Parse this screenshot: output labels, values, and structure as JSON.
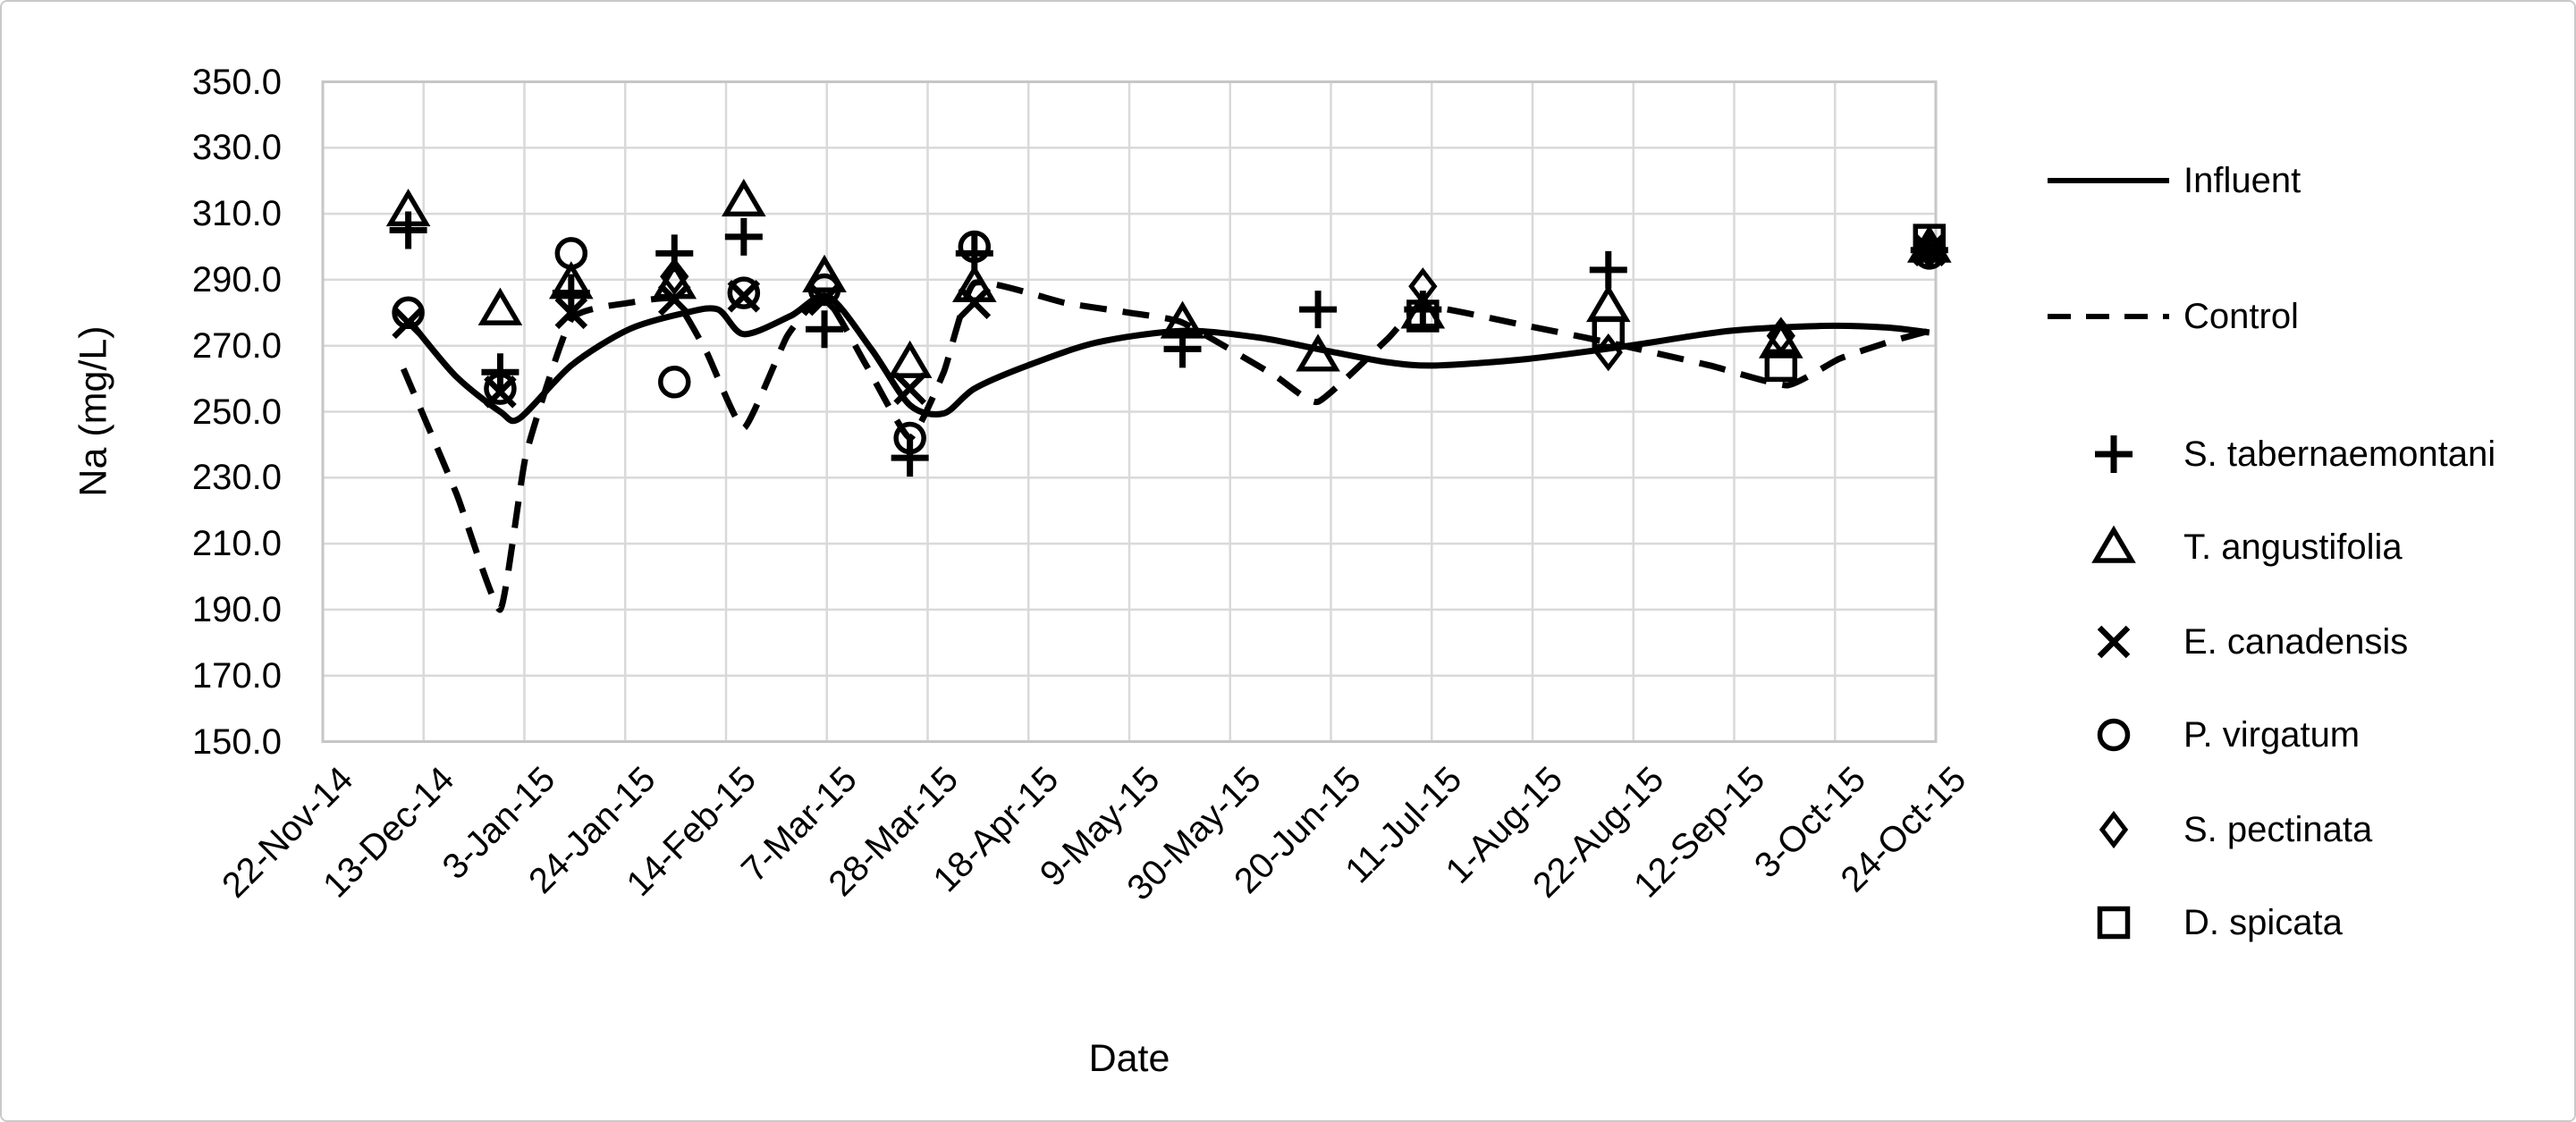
{
  "figure": {
    "background": "#ffffff",
    "border_color": "#c9c9c9",
    "grid_color": "#d9d9d9",
    "plot_border_color": "#c6c6c6",
    "ink_color": "#000000"
  },
  "chart_data": {
    "type": "line+scatter",
    "title": "",
    "xlabel": "Date",
    "ylabel": "Na (mg/L)",
    "ylim": [
      150,
      350
    ],
    "ytick_step": 20,
    "ytick_labels": [
      "350.0",
      "330.0",
      "310.0",
      "290.0",
      "270.0",
      "250.0",
      "230.0",
      "210.0",
      "190.0",
      "170.0",
      "150.0"
    ],
    "xtick_labels": [
      "22-Nov-14",
      "13-Dec-14",
      "3-Jan-15",
      "24-Jan-15",
      "14-Feb-15",
      "7-Mar-15",
      "28-Mar-15",
      "18-Apr-15",
      "9-May-15",
      "30-May-15",
      "20-Jun-15",
      "11-Jul-15",
      "1-Aug-15",
      "22-Aug-15",
      "12-Sep-15",
      "3-Oct-15",
      "24-Oct-15"
    ],
    "grid": true,
    "legend_position": "right",
    "note_x_units": "x values are fractions of the horizontal axis span (0 = 22-Nov-14 tick, 1 = 24-Oct-15 tick)",
    "series_lines": [
      {
        "name": "Influent",
        "style": "solid",
        "points": [
          [
            0.053,
            278
          ],
          [
            0.082,
            261
          ],
          [
            0.11,
            250
          ],
          [
            0.122,
            248
          ],
          [
            0.154,
            264
          ],
          [
            0.19,
            275
          ],
          [
            0.225,
            280
          ],
          [
            0.245,
            281
          ],
          [
            0.261,
            273.5
          ],
          [
            0.29,
            279
          ],
          [
            0.313,
            285
          ],
          [
            0.34,
            269
          ],
          [
            0.364,
            252
          ],
          [
            0.385,
            249.5
          ],
          [
            0.404,
            257
          ],
          [
            0.437,
            264
          ],
          [
            0.48,
            271
          ],
          [
            0.533,
            274.5
          ],
          [
            0.58,
            272.5
          ],
          [
            0.617,
            269
          ],
          [
            0.66,
            265
          ],
          [
            0.69,
            264
          ],
          [
            0.747,
            266
          ],
          [
            0.81,
            270
          ],
          [
            0.872,
            274.5
          ],
          [
            0.93,
            276
          ],
          [
            0.97,
            275.5
          ],
          [
            0.996,
            274
          ]
        ]
      },
      {
        "name": "Control",
        "style": "dashed",
        "points": [
          [
            0.05,
            263
          ],
          [
            0.083,
            225
          ],
          [
            0.11,
            190
          ],
          [
            0.126,
            237
          ],
          [
            0.154,
            278
          ],
          [
            0.19,
            283
          ],
          [
            0.218,
            284
          ],
          [
            0.238,
            268
          ],
          [
            0.261,
            245
          ],
          [
            0.288,
            273
          ],
          [
            0.311,
            285
          ],
          [
            0.337,
            264
          ],
          [
            0.364,
            242
          ],
          [
            0.385,
            262
          ],
          [
            0.404,
            289
          ],
          [
            0.46,
            283
          ],
          [
            0.5,
            280
          ],
          [
            0.533,
            277
          ],
          [
            0.59,
            261
          ],
          [
            0.617,
            253
          ],
          [
            0.66,
            272
          ],
          [
            0.682,
            282
          ],
          [
            0.747,
            276
          ],
          [
            0.797,
            271
          ],
          [
            0.86,
            264
          ],
          [
            0.908,
            258
          ],
          [
            0.94,
            266
          ],
          [
            0.97,
            271
          ],
          [
            0.996,
            274.5
          ]
        ]
      }
    ],
    "series_markers": [
      {
        "name": "S. tabernaemontani",
        "marker": "plus",
        "points": [
          [
            0.053,
            305
          ],
          [
            0.11,
            262
          ],
          [
            0.154,
            286
          ],
          [
            0.218,
            298
          ],
          [
            0.261,
            303
          ],
          [
            0.311,
            275
          ],
          [
            0.364,
            236
          ],
          [
            0.404,
            298
          ],
          [
            0.533,
            269
          ],
          [
            0.617,
            281
          ],
          [
            0.682,
            281
          ],
          [
            0.797,
            293
          ],
          [
            0.996,
            299
          ]
        ]
      },
      {
        "name": "T. angustifolia",
        "marker": "triangle",
        "points": [
          [
            0.053,
            311
          ],
          [
            0.11,
            281
          ],
          [
            0.154,
            289
          ],
          [
            0.218,
            289
          ],
          [
            0.261,
            314
          ],
          [
            0.311,
            291
          ],
          [
            0.364,
            265
          ],
          [
            0.404,
            288
          ],
          [
            0.533,
            277
          ],
          [
            0.617,
            267
          ],
          [
            0.682,
            280
          ],
          [
            0.797,
            282
          ],
          [
            0.904,
            271
          ],
          [
            0.996,
            300
          ]
        ]
      },
      {
        "name": "E. canadensis",
        "marker": "x",
        "points": [
          [
            0.053,
            277
          ],
          [
            0.11,
            256
          ],
          [
            0.154,
            280
          ],
          [
            0.218,
            284
          ],
          [
            0.261,
            285
          ],
          [
            0.311,
            284
          ],
          [
            0.364,
            257
          ],
          [
            0.404,
            283
          ],
          [
            0.996,
            299
          ]
        ]
      },
      {
        "name": "P. virgatum",
        "marker": "circle",
        "points": [
          [
            0.053,
            280
          ],
          [
            0.11,
            257
          ],
          [
            0.154,
            298
          ],
          [
            0.218,
            259
          ],
          [
            0.261,
            286
          ],
          [
            0.311,
            287
          ],
          [
            0.364,
            242
          ],
          [
            0.404,
            300
          ],
          [
            0.996,
            298
          ]
        ]
      },
      {
        "name": "S. pectinata",
        "marker": "diamond",
        "points": [
          [
            0.218,
            291
          ],
          [
            0.682,
            288
          ],
          [
            0.797,
            268
          ],
          [
            0.904,
            273
          ],
          [
            0.996,
            299
          ]
        ]
      },
      {
        "name": "D. spicata",
        "marker": "square",
        "points": [
          [
            0.682,
            279
          ],
          [
            0.797,
            274
          ],
          [
            0.904,
            264
          ],
          [
            0.996,
            302
          ]
        ]
      }
    ],
    "legend": [
      {
        "label": "Influent",
        "symbol": "solid-line"
      },
      {
        "label": "Control",
        "symbol": "dashed-line"
      },
      {
        "label": "S. tabernaemontani",
        "symbol": "plus"
      },
      {
        "label": "T. angustifolia",
        "symbol": "triangle"
      },
      {
        "label": "E. canadensis",
        "symbol": "x"
      },
      {
        "label": "P. virgatum",
        "symbol": "circle"
      },
      {
        "label": "S. pectinata",
        "symbol": "diamond"
      },
      {
        "label": "D. spicata",
        "symbol": "square"
      }
    ]
  }
}
